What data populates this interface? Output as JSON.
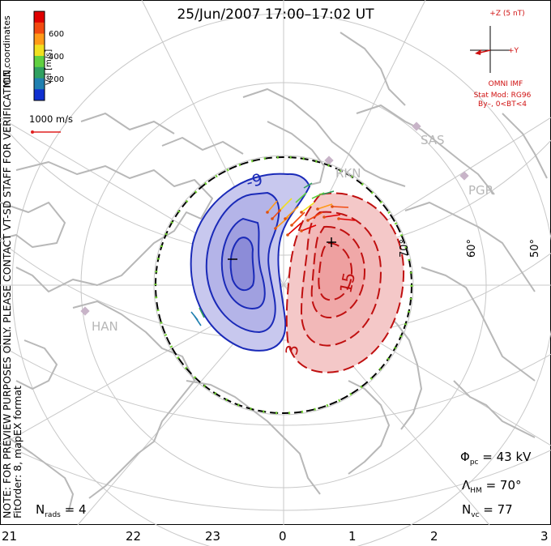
{
  "title": "25/Jun/2007 17:00–17:02 UT",
  "side_note": {
    "line1": "NOTE: FOR PREVIEW PURPOSES ONLY. PLEASE CONTACT VT-SD STAFF FOR VERIFICATION.",
    "line2": "FitOrder: 8, mapEX format"
  },
  "coordinates_label": "MLT coordinates",
  "colorbar": {
    "label": "Vel [m/s]",
    "ticks": [
      "600",
      "400",
      "200"
    ],
    "colors": [
      "#e00000",
      "#f24a10",
      "#ff9a18",
      "#f0e020",
      "#60d040",
      "#30a060",
      "#2080b0",
      "#1030d0"
    ]
  },
  "reference_vector": {
    "label": "1000 m/s",
    "color": "#e02020"
  },
  "imf": {
    "scale_label": "+Z (5 nT)",
    "y_label": "+Y",
    "source": "OMNI IMF",
    "model_line1": "Stat Mod: RG96",
    "model_line2": "By–, 0<BT<4",
    "color": "#d01010"
  },
  "stats": {
    "phi_pc": {
      "symbol": "Φ",
      "sub": "pc",
      "value": "= 43 kV"
    },
    "lambda_hm": {
      "symbol": "Λ",
      "sub": "HM",
      "value": "= 70°"
    },
    "n_vc": {
      "symbol": "N",
      "sub": "vc",
      "value": "= 77"
    },
    "n_rads": {
      "symbol": "N",
      "sub": "rads",
      "value": "= 4"
    }
  },
  "mlt_labels": [
    "21",
    "22",
    "23",
    "0",
    "1",
    "2",
    "3"
  ],
  "sites": [
    "RKN",
    "SAS",
    "PGR",
    "HAN"
  ],
  "latitude_labels": [
    "70°",
    "60°",
    "50°"
  ],
  "contour_labels": {
    "neg": "-9",
    "pos_mid": "15",
    "pos_low": "3",
    "min_marker": "–",
    "max_marker": "+"
  },
  "colors": {
    "neg_fill": "#c8c8ee",
    "neg_line": "#1a2ab8",
    "pos_fill": "#f4c8c8",
    "pos_line": "#c01010",
    "map": "#b8b8b8",
    "grid": "#c8c8c8"
  }
}
